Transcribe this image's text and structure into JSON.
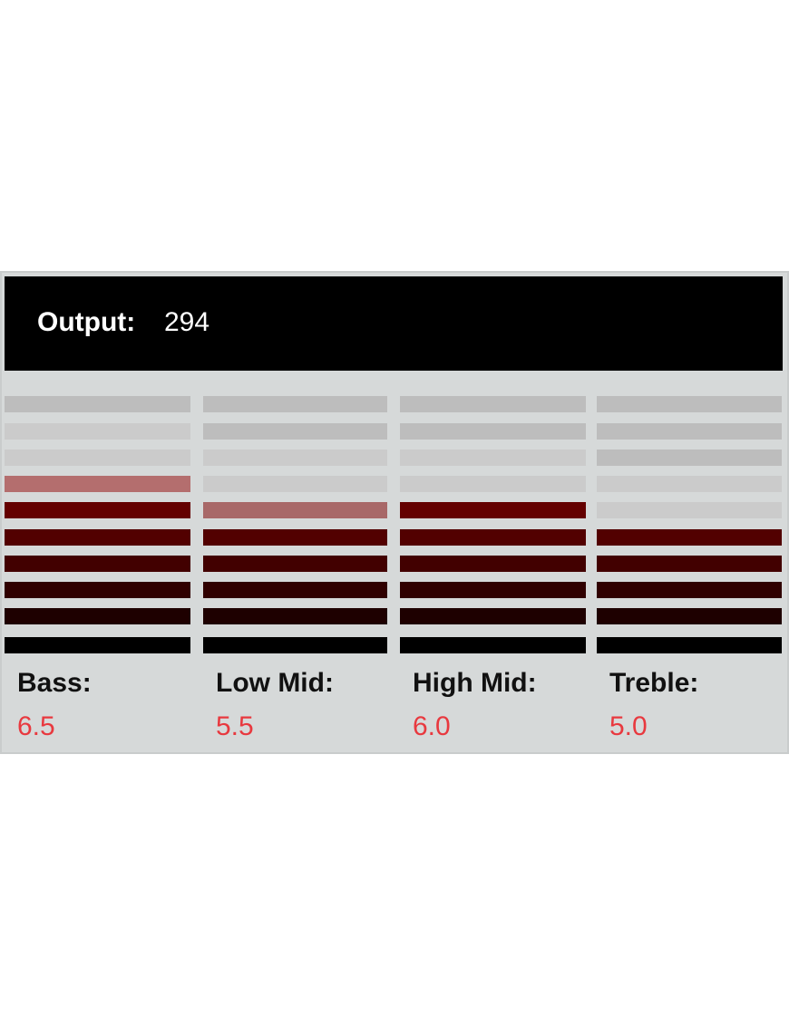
{
  "output": {
    "label": "Output:",
    "value": "294"
  },
  "bands": [
    {
      "name": "Bass:",
      "value": "6.5"
    },
    {
      "name": "Low Mid:",
      "value": "5.5"
    },
    {
      "name": "High Mid:",
      "value": "6.0"
    },
    {
      "name": "Treble:",
      "value": "5.0"
    }
  ]
}
